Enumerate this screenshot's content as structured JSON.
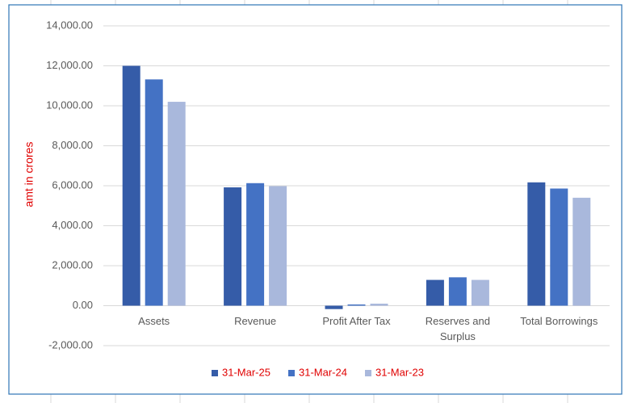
{
  "chart_data": {
    "type": "bar",
    "y_label": "amt in crores",
    "categories": [
      "Assets",
      "Revenue",
      "Profit After Tax",
      "Reserves and Surplus",
      "Total Borrowings"
    ],
    "series": [
      {
        "name": "31-Mar-25",
        "color": "#355ca8",
        "values": [
          12000,
          5920,
          -170,
          1290,
          6170
        ]
      },
      {
        "name": "31-Mar-24",
        "color": "#4472c4",
        "values": [
          11320,
          6130,
          60,
          1420,
          5860
        ]
      },
      {
        "name": "31-Mar-23",
        "color": "#a9b8dc",
        "values": [
          10200,
          5980,
          100,
          1290,
          5400
        ]
      }
    ],
    "ylim": [
      -2000,
      14000
    ],
    "yticks": [
      {
        "value": -2000,
        "label": "-2,000.00"
      },
      {
        "value": 0,
        "label": "0.00"
      },
      {
        "value": 2000,
        "label": "2,000.00"
      },
      {
        "value": 4000,
        "label": "4,000.00"
      },
      {
        "value": 6000,
        "label": "6,000.00"
      },
      {
        "value": 8000,
        "label": "8,000.00"
      },
      {
        "value": 10000,
        "label": "10,000.00"
      },
      {
        "value": 12000,
        "label": "12,000.00"
      },
      {
        "value": 14000,
        "label": "14,000.00"
      }
    ],
    "grid": true,
    "legend": "bottom"
  }
}
